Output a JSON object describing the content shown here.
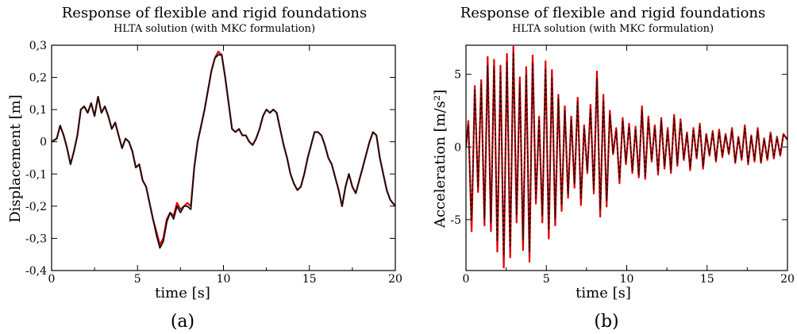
{
  "chart_data": [
    {
      "type": "line",
      "panel_label": "(a)",
      "title": "Response of flexible and rigid foundations",
      "subtitle": "HLTA solution (with MKC formulation)",
      "xlabel": "time [s]",
      "ylabel": "Displacement [m]",
      "xlim": [
        0,
        20
      ],
      "ylim": [
        -0.4,
        0.3
      ],
      "xticks": [
        0,
        5,
        10,
        15,
        20
      ],
      "xtick_labels": [
        "0",
        "5",
        "10",
        "15",
        "20"
      ],
      "yticks": [
        -0.4,
        -0.3,
        -0.2,
        -0.1,
        0,
        0.1,
        0.2,
        0.3
      ],
      "ytick_labels": [
        "-0,4",
        "-0,3",
        "-0,2",
        "-0,1",
        "0",
        "0,1",
        "0,2",
        "0,3"
      ],
      "grid": false,
      "legend": "none",
      "series": [
        {
          "color": "#e00000",
          "style": "solid",
          "x": [
            0,
            0.3,
            0.5,
            0.7,
            0.9,
            1.1,
            1.3,
            1.5,
            1.7,
            1.9,
            2.1,
            2.3,
            2.5,
            2.7,
            2.9,
            3.1,
            3.3,
            3.5,
            3.7,
            3.9,
            4.1,
            4.3,
            4.5,
            4.7,
            4.9,
            5.1,
            5.3,
            5.5,
            5.7,
            5.9,
            6.1,
            6.3,
            6.5,
            6.7,
            6.9,
            7.1,
            7.3,
            7.5,
            7.7,
            7.9,
            8.1,
            8.3,
            8.5,
            8.7,
            8.9,
            9.1,
            9.3,
            9.5,
            9.7,
            9.9,
            10.1,
            10.3,
            10.5,
            10.7,
            10.9,
            11.1,
            11.3,
            11.5,
            11.7,
            11.9,
            12.1,
            12.3,
            12.5,
            12.7,
            12.9,
            13.1,
            13.3,
            13.5,
            13.7,
            13.9,
            14.1,
            14.3,
            14.5,
            14.7,
            14.9,
            15.1,
            15.3,
            15.5,
            15.7,
            15.9,
            16.1,
            16.3,
            16.5,
            16.7,
            16.9,
            17.1,
            17.3,
            17.5,
            17.7,
            17.9,
            18.1,
            18.3,
            18.5,
            18.7,
            18.9,
            19.1,
            19.3,
            19.5,
            19.7,
            20
          ],
          "y": [
            0,
            0.01,
            0.05,
            0.02,
            -0.02,
            -0.07,
            -0.03,
            0.02,
            0.1,
            0.11,
            0.09,
            0.12,
            0.08,
            0.14,
            0.09,
            0.11,
            0.08,
            0.04,
            0.06,
            0.02,
            -0.02,
            0.01,
            0.0,
            -0.03,
            -0.08,
            -0.07,
            -0.12,
            -0.14,
            -0.19,
            -0.24,
            -0.28,
            -0.32,
            -0.3,
            -0.24,
            -0.22,
            -0.23,
            -0.19,
            -0.21,
            -0.2,
            -0.19,
            -0.2,
            -0.08,
            0.0,
            0.05,
            0.1,
            0.16,
            0.22,
            0.26,
            0.28,
            0.27,
            0.2,
            0.12,
            0.04,
            0.03,
            0.04,
            0.02,
            0.02,
            0.0,
            -0.01,
            0.01,
            0.04,
            0.08,
            0.1,
            0.09,
            0.1,
            0.09,
            0.04,
            -0.01,
            -0.05,
            -0.1,
            -0.13,
            -0.15,
            -0.14,
            -0.1,
            -0.05,
            -0.01,
            0.03,
            0.03,
            0.02,
            -0.01,
            -0.05,
            -0.07,
            -0.11,
            -0.15,
            -0.2,
            -0.14,
            -0.1,
            -0.14,
            -0.16,
            -0.12,
            -0.08,
            -0.04,
            0.0,
            0.03,
            0.02,
            -0.05,
            -0.1,
            -0.15,
            -0.18,
            -0.2
          ]
        },
        {
          "color": "#111111",
          "style": "solid",
          "x": [
            0,
            0.3,
            0.5,
            0.7,
            0.9,
            1.1,
            1.3,
            1.5,
            1.7,
            1.9,
            2.1,
            2.3,
            2.5,
            2.7,
            2.9,
            3.1,
            3.3,
            3.5,
            3.7,
            3.9,
            4.1,
            4.3,
            4.5,
            4.7,
            4.9,
            5.1,
            5.3,
            5.5,
            5.7,
            5.9,
            6.1,
            6.3,
            6.5,
            6.7,
            6.9,
            7.1,
            7.3,
            7.5,
            7.7,
            7.9,
            8.1,
            8.3,
            8.5,
            8.7,
            8.9,
            9.1,
            9.3,
            9.5,
            9.7,
            9.9,
            10.1,
            10.3,
            10.5,
            10.7,
            10.9,
            11.1,
            11.3,
            11.5,
            11.7,
            11.9,
            12.1,
            12.3,
            12.5,
            12.7,
            12.9,
            13.1,
            13.3,
            13.5,
            13.7,
            13.9,
            14.1,
            14.3,
            14.5,
            14.7,
            14.9,
            15.1,
            15.3,
            15.5,
            15.7,
            15.9,
            16.1,
            16.3,
            16.5,
            16.7,
            16.9,
            17.1,
            17.3,
            17.5,
            17.7,
            17.9,
            18.1,
            18.3,
            18.5,
            18.7,
            18.9,
            19.1,
            19.3,
            19.5,
            19.7,
            20
          ],
          "y": [
            0,
            0.01,
            0.05,
            0.02,
            -0.02,
            -0.07,
            -0.03,
            0.02,
            0.1,
            0.11,
            0.09,
            0.12,
            0.08,
            0.14,
            0.09,
            0.11,
            0.08,
            0.04,
            0.06,
            0.02,
            -0.02,
            0.01,
            0.0,
            -0.03,
            -0.08,
            -0.07,
            -0.12,
            -0.14,
            -0.19,
            -0.24,
            -0.29,
            -0.33,
            -0.31,
            -0.25,
            -0.22,
            -0.24,
            -0.2,
            -0.22,
            -0.2,
            -0.2,
            -0.21,
            -0.08,
            0.0,
            0.05,
            0.1,
            0.16,
            0.22,
            0.26,
            0.27,
            0.27,
            0.2,
            0.12,
            0.04,
            0.03,
            0.04,
            0.02,
            0.02,
            0.0,
            -0.01,
            0.01,
            0.04,
            0.08,
            0.1,
            0.09,
            0.1,
            0.09,
            0.04,
            -0.01,
            -0.05,
            -0.1,
            -0.13,
            -0.15,
            -0.14,
            -0.1,
            -0.05,
            -0.01,
            0.03,
            0.03,
            0.02,
            -0.01,
            -0.05,
            -0.07,
            -0.11,
            -0.15,
            -0.2,
            -0.14,
            -0.1,
            -0.14,
            -0.16,
            -0.12,
            -0.08,
            -0.04,
            0.0,
            0.03,
            0.02,
            -0.05,
            -0.1,
            -0.15,
            -0.18,
            -0.2
          ]
        }
      ]
    },
    {
      "type": "line",
      "panel_label": "(b)",
      "title": "Response of flexible and rigid foundations",
      "subtitle": "HLTA solution (with MKC formulation)",
      "xlabel": "time [s]",
      "ylabel": "Acceleration [m/s²]",
      "xlim": [
        0,
        20
      ],
      "ylim": [
        -8.5,
        7
      ],
      "xticks": [
        0,
        5,
        10,
        15,
        20
      ],
      "xtick_labels": [
        "0",
        "5",
        "10",
        "15",
        "20"
      ],
      "yticks": [
        -5,
        0,
        5
      ],
      "ytick_labels": [
        "-5",
        "0",
        "5"
      ],
      "grid": false,
      "legend": "none",
      "series": [
        {
          "color": "#e00000",
          "style": "solid",
          "x": [
            0,
            0.15,
            0.35,
            0.55,
            0.75,
            0.95,
            1.15,
            1.35,
            1.55,
            1.75,
            1.95,
            2.15,
            2.35,
            2.55,
            2.75,
            2.95,
            3.15,
            3.35,
            3.55,
            3.75,
            3.95,
            4.15,
            4.35,
            4.55,
            4.75,
            4.95,
            5.15,
            5.35,
            5.55,
            5.75,
            5.95,
            6.15,
            6.35,
            6.55,
            6.75,
            6.95,
            7.15,
            7.35,
            7.55,
            7.75,
            7.95,
            8.15,
            8.35,
            8.55,
            8.75,
            8.95,
            9.15,
            9.35,
            9.55,
            9.75,
            9.95,
            10.15,
            10.35,
            10.55,
            10.75,
            10.95,
            11.15,
            11.35,
            11.55,
            11.75,
            11.95,
            12.15,
            12.35,
            12.55,
            12.75,
            12.95,
            13.15,
            13.35,
            13.55,
            13.75,
            13.95,
            14.15,
            14.35,
            14.55,
            14.75,
            14.95,
            15.15,
            15.35,
            15.55,
            15.75,
            15.95,
            16.15,
            16.35,
            16.55,
            16.75,
            16.95,
            17.15,
            17.35,
            17.55,
            17.75,
            17.95,
            18.15,
            18.35,
            18.55,
            18.75,
            18.95,
            19.15,
            19.35,
            19.55,
            19.75,
            20
          ],
          "y": [
            0,
            1.8,
            -5.8,
            4.2,
            -3.1,
            4.6,
            -5.4,
            6.2,
            -5.8,
            6.0,
            -7.2,
            5.6,
            -8.3,
            6.4,
            -7.6,
            6.9,
            -5.2,
            4.8,
            -7.1,
            5.5,
            -7.9,
            6.3,
            -3.9,
            2.1,
            -5.2,
            5.9,
            -6.3,
            5.3,
            -5.4,
            3.6,
            -4.4,
            2.8,
            -3.5,
            2.1,
            -2.8,
            3.4,
            -4.0,
            1.5,
            -1.8,
            2.9,
            -3.2,
            5.2,
            -4.8,
            3.6,
            -4.1,
            2.5,
            -0.5,
            1.3,
            -2.5,
            2.0,
            -1.2,
            1.6,
            -1.8,
            1.4,
            -2.1,
            2.8,
            -2.2,
            2.1,
            -1.0,
            1.5,
            -1.9,
            2.0,
            -1.5,
            1.3,
            -1.8,
            2.2,
            -1.3,
            1.9,
            -0.9,
            1.0,
            -1.6,
            1.3,
            -0.8,
            1.6,
            -1.5,
            0.9,
            -0.6,
            1.1,
            -1.0,
            1.2,
            -0.7,
            0.9,
            -0.5,
            1.3,
            -1.1,
            0.7,
            -0.9,
            1.5,
            -1.2,
            0.8,
            -1.0,
            1.3,
            -1.1,
            0.6,
            -0.9,
            1.0,
            -0.8,
            0.7,
            -0.6,
            0.9,
            0.5
          ]
        },
        {
          "color": "#111111",
          "style": "dashed",
          "x": [
            0,
            0.15,
            0.35,
            0.55,
            0.75,
            0.95,
            1.15,
            1.35,
            1.55,
            1.75,
            1.95,
            2.15,
            2.35,
            2.55,
            2.75,
            2.95,
            3.15,
            3.35,
            3.55,
            3.75,
            3.95,
            4.15,
            4.35,
            4.55,
            4.75,
            4.95,
            5.15,
            5.35,
            5.55,
            5.75,
            5.95,
            6.15,
            6.35,
            6.55,
            6.75,
            6.95,
            7.15,
            7.35,
            7.55,
            7.75,
            7.95,
            8.15,
            8.35,
            8.55,
            8.75,
            8.95,
            9.15,
            9.35,
            9.55,
            9.75,
            9.95,
            10.15,
            10.35,
            10.55,
            10.75,
            10.95,
            11.15,
            11.35,
            11.55,
            11.75,
            11.95,
            12.15,
            12.35,
            12.55,
            12.75,
            12.95,
            13.15,
            13.35,
            13.55,
            13.75,
            13.95,
            14.15,
            14.35,
            14.55,
            14.75,
            14.95,
            15.15,
            15.35,
            15.55,
            15.75,
            15.95,
            16.15,
            16.35,
            16.55,
            16.75,
            16.95,
            17.15,
            17.35,
            17.55,
            17.75,
            17.95,
            18.15,
            18.35,
            18.55,
            18.75,
            18.95,
            19.15,
            19.35,
            19.55,
            19.75,
            20
          ],
          "y": [
            0,
            1.5,
            -5.1,
            3.9,
            -2.8,
            4.3,
            -4.9,
            5.6,
            -5.2,
            5.5,
            -6.5,
            5.1,
            -7.5,
            5.9,
            -6.9,
            6.5,
            -4.7,
            4.3,
            -6.4,
            5.0,
            -7.2,
            5.8,
            -3.5,
            1.9,
            -4.7,
            5.4,
            -5.7,
            4.8,
            -4.9,
            3.3,
            -4.0,
            2.5,
            -3.2,
            1.9,
            -2.5,
            3.1,
            -3.6,
            1.3,
            -1.6,
            2.6,
            -2.9,
            4.7,
            -4.3,
            3.2,
            -3.7,
            2.2,
            -0.4,
            1.1,
            -2.2,
            1.8,
            -1.0,
            1.4,
            -1.6,
            1.2,
            -1.9,
            2.5,
            -2.0,
            1.9,
            -0.9,
            1.3,
            -1.7,
            1.8,
            -1.3,
            1.1,
            -1.6,
            2.0,
            -1.1,
            1.7,
            -0.8,
            0.9,
            -1.4,
            1.1,
            -0.7,
            1.4,
            -1.3,
            0.8,
            -0.5,
            1.0,
            -0.9,
            1.0,
            -0.6,
            0.8,
            -0.4,
            1.1,
            -1.0,
            0.6,
            -0.8,
            1.3,
            -1.0,
            0.7,
            -0.9,
            1.1,
            -1.0,
            0.5,
            -0.8,
            0.9,
            -0.7,
            0.6,
            -0.5,
            0.8,
            0.5
          ]
        }
      ]
    }
  ]
}
